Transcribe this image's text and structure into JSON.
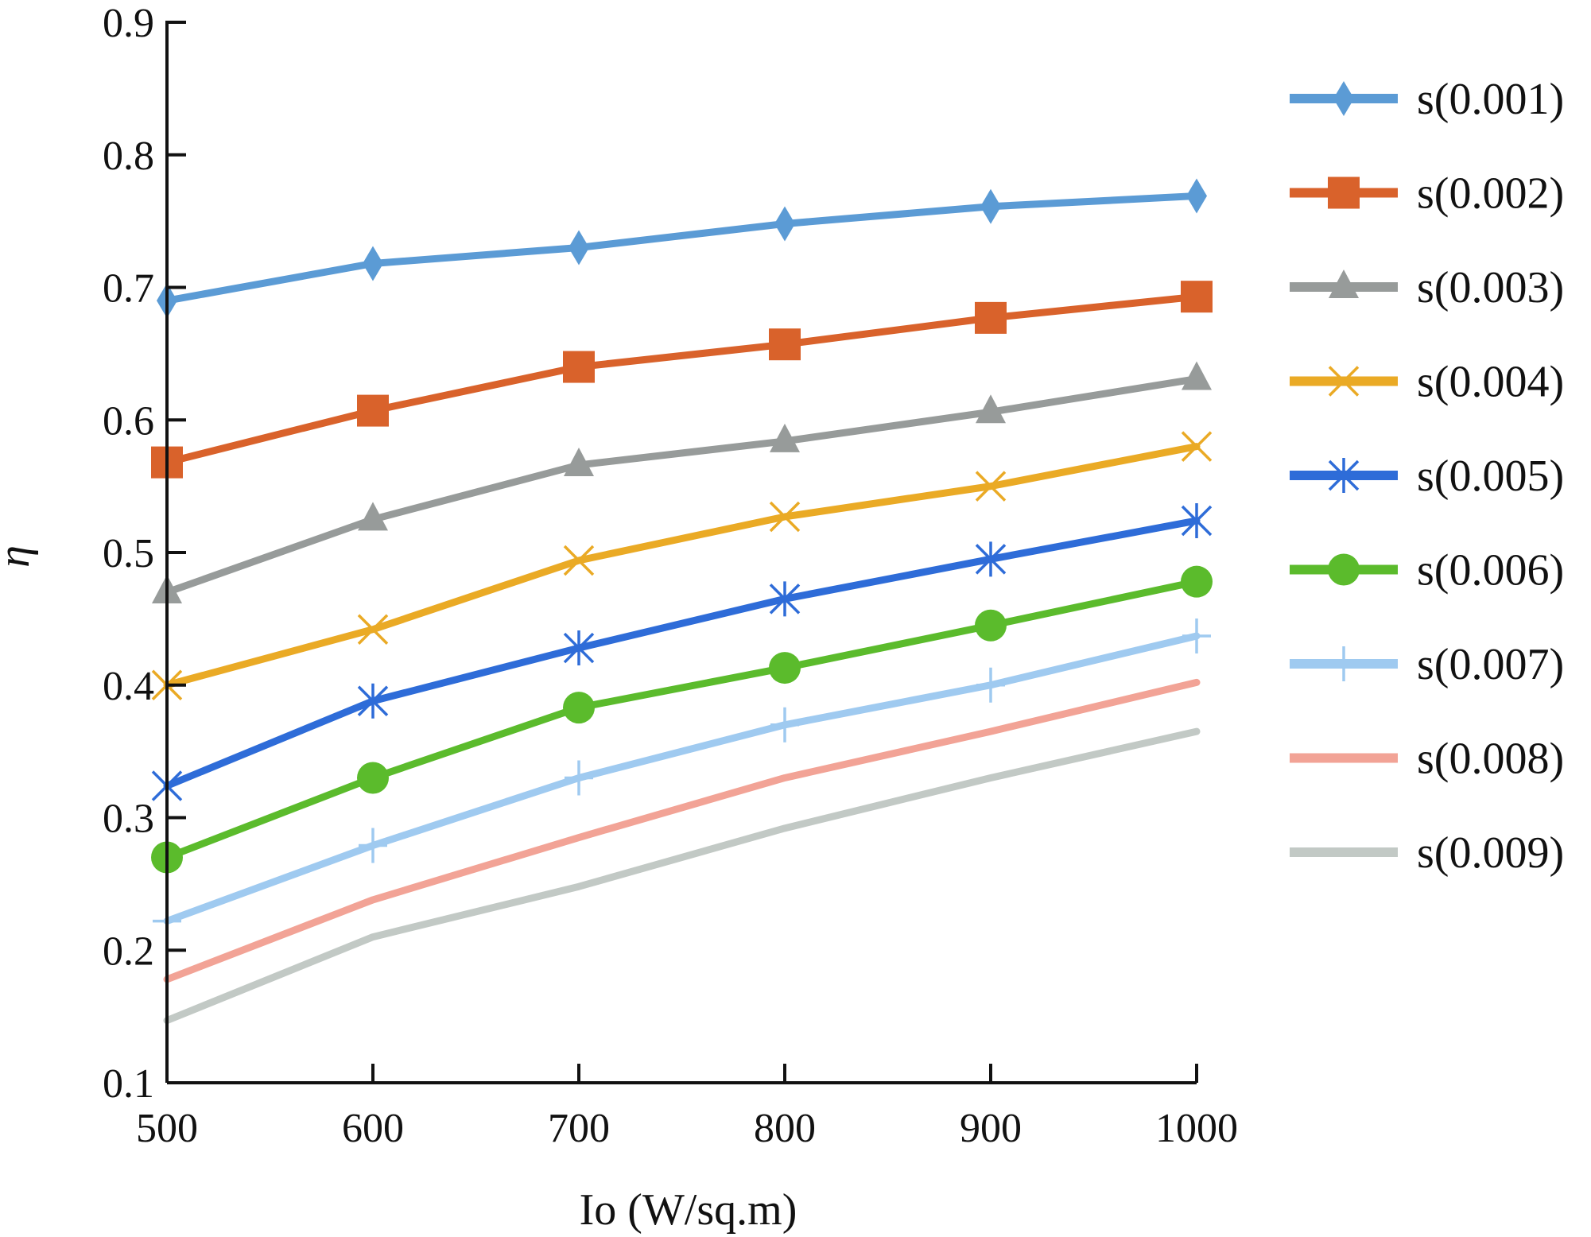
{
  "chart_data": {
    "type": "line",
    "title": "",
    "xlabel": "Io (W/sq.m)",
    "ylabel": "η",
    "xlim": [
      500,
      1000
    ],
    "ylim": [
      0.1,
      0.9
    ],
    "x": [
      500,
      600,
      700,
      800,
      900,
      1000
    ],
    "x_ticks": [
      "500",
      "600",
      "700",
      "800",
      "900",
      "1000"
    ],
    "y_ticks": [
      "0.1",
      "0.2",
      "0.3",
      "0.4",
      "0.5",
      "0.6",
      "0.7",
      "0.8",
      "0.9"
    ],
    "grid": false,
    "legend_position": "right",
    "series": [
      {
        "name": "s(0.001)",
        "color": "#5b9bd5",
        "marker": "diamond",
        "values": [
          0.69,
          0.718,
          0.73,
          0.748,
          0.761,
          0.769
        ]
      },
      {
        "name": "s(0.002)",
        "color": "#d9622b",
        "marker": "square",
        "values": [
          0.568,
          0.607,
          0.64,
          0.657,
          0.677,
          0.693
        ]
      },
      {
        "name": "s(0.003)",
        "color": "#979b9a",
        "marker": "triangle",
        "values": [
          0.47,
          0.525,
          0.566,
          0.584,
          0.606,
          0.631
        ]
      },
      {
        "name": "s(0.004)",
        "color": "#eaaa25",
        "marker": "x",
        "values": [
          0.4,
          0.442,
          0.494,
          0.527,
          0.55,
          0.58
        ]
      },
      {
        "name": "s(0.005)",
        "color": "#2e6cd8",
        "marker": "asterisk",
        "values": [
          0.324,
          0.388,
          0.428,
          0.465,
          0.495,
          0.524
        ]
      },
      {
        "name": "s(0.006)",
        "color": "#5bbb2c",
        "marker": "circle",
        "values": [
          0.27,
          0.33,
          0.383,
          0.413,
          0.445,
          0.478
        ]
      },
      {
        "name": "s(0.007)",
        "color": "#9fcaf0",
        "marker": "plus",
        "values": [
          0.222,
          0.279,
          0.33,
          0.37,
          0.4,
          0.437
        ]
      },
      {
        "name": "s(0.008)",
        "color": "#f2a396",
        "marker": "none",
        "values": [
          0.178,
          0.238,
          0.285,
          0.33,
          0.365,
          0.402
        ]
      },
      {
        "name": "s(0.009)",
        "color": "#c2c9c5",
        "marker": "none",
        "values": [
          0.147,
          0.21,
          0.248,
          0.292,
          0.33,
          0.365
        ]
      }
    ]
  }
}
